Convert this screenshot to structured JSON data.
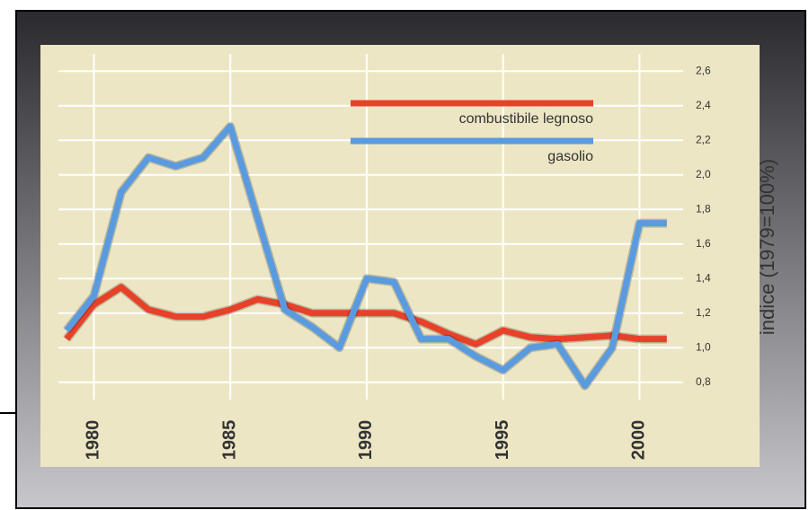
{
  "chart_data": {
    "type": "line",
    "ylabel": "indice (1979=100%)",
    "x": [
      1979,
      1980,
      1981,
      1982,
      1983,
      1984,
      1985,
      1986,
      1987,
      1988,
      1989,
      1990,
      1991,
      1992,
      1993,
      1994,
      1995,
      1996,
      1997,
      1998,
      1999,
      2000,
      2001
    ],
    "series": [
      {
        "name": "combustibile legnoso",
        "color": "#e8412a",
        "values": [
          1.05,
          1.25,
          1.35,
          1.22,
          1.18,
          1.18,
          1.22,
          1.28,
          1.25,
          1.2,
          1.2,
          1.2,
          1.2,
          1.15,
          1.08,
          1.02,
          1.1,
          1.06,
          1.05,
          1.06,
          1.07,
          1.05,
          1.05
        ]
      },
      {
        "name": "gasolio",
        "color": "#5a9be0",
        "values": [
          1.1,
          1.3,
          1.9,
          2.1,
          2.05,
          2.1,
          2.28,
          1.75,
          1.22,
          1.12,
          1.0,
          1.4,
          1.38,
          1.05,
          1.05,
          0.95,
          0.87,
          1.0,
          1.02,
          0.78,
          1.0,
          1.72,
          1.72
        ]
      }
    ],
    "xlim": [
      1978.7,
      2001.6
    ],
    "xticks": [
      1980,
      1985,
      1990,
      1995,
      2000
    ],
    "ylim": [
      0.7,
      2.7
    ],
    "yticks": [
      {
        "value": 0.8,
        "label": "0,8"
      },
      {
        "value": 1.0,
        "label": "1,0"
      },
      {
        "value": 1.2,
        "label": "1,2"
      },
      {
        "value": 1.4,
        "label": "1,4"
      },
      {
        "value": 1.6,
        "label": "1,6"
      },
      {
        "value": 1.8,
        "label": "1,8"
      },
      {
        "value": 2.0,
        "label": "2,0"
      },
      {
        "value": 2.2,
        "label": "2,2"
      },
      {
        "value": 2.4,
        "label": "2,4"
      },
      {
        "value": 2.6,
        "label": "2,6"
      }
    ],
    "grid": true
  }
}
